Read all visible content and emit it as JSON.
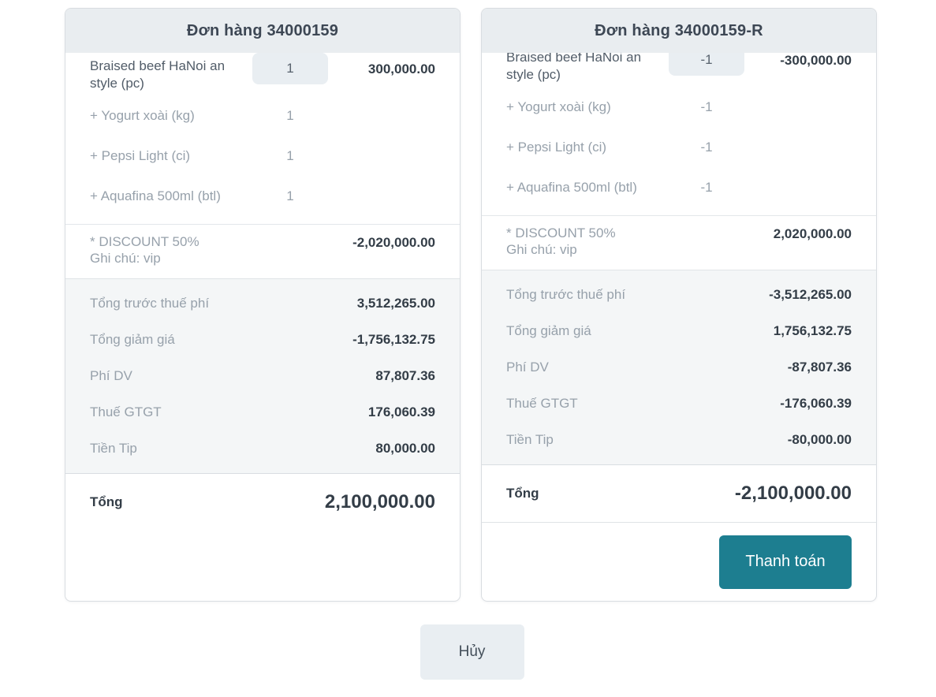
{
  "orders": [
    {
      "title": "Đơn hàng 34000159",
      "items": [
        {
          "name": "Braised beef HaNoi an style (pc)",
          "qty": "1",
          "price": "300,000.00"
        },
        {
          "name": "+ Yogurt xoài (kg)",
          "qty": "1",
          "price": ""
        },
        {
          "name": "+ Pepsi Light (ci)",
          "qty": "1",
          "price": ""
        },
        {
          "name": "+ Aquafina 500ml (btl)",
          "qty": "1",
          "price": ""
        }
      ],
      "discount": {
        "label": "* DISCOUNT 50%",
        "note": "Ghi chú: vip",
        "amount": "-2,020,000.00"
      },
      "summary": [
        {
          "label": "Tổng trước thuế phí",
          "value": "3,512,265.00"
        },
        {
          "label": "Tổng giảm giá",
          "value": "-1,756,132.75"
        },
        {
          "label": "Phí DV",
          "value": "87,807.36"
        },
        {
          "label": "Thuế GTGT",
          "value": "176,060.39"
        },
        {
          "label": "Tiền Tip",
          "value": "80,000.00"
        }
      ],
      "total": {
        "label": "Tổng",
        "value": "2,100,000.00"
      }
    },
    {
      "title": "Đơn hàng 34000159-R",
      "items": [
        {
          "name": "Braised beef HaNoi an style (pc)",
          "qty": "-1",
          "price": "-300,000.00"
        },
        {
          "name": "+ Yogurt xoài (kg)",
          "qty": "-1",
          "price": ""
        },
        {
          "name": "+ Pepsi Light (ci)",
          "qty": "-1",
          "price": ""
        },
        {
          "name": "+ Aquafina 500ml (btl)",
          "qty": "-1",
          "price": ""
        }
      ],
      "discount": {
        "label": "* DISCOUNT 50%",
        "note": "Ghi chú: vip",
        "amount": "2,020,000.00"
      },
      "summary": [
        {
          "label": "Tổng trước thuế phí",
          "value": "-3,512,265.00"
        },
        {
          "label": "Tổng giảm giá",
          "value": "1,756,132.75"
        },
        {
          "label": "Phí DV",
          "value": "-87,807.36"
        },
        {
          "label": "Thuế GTGT",
          "value": "-176,060.39"
        },
        {
          "label": "Tiền Tip",
          "value": "-80,000.00"
        }
      ],
      "total": {
        "label": "Tổng",
        "value": "-2,100,000.00"
      },
      "pay_button_label": "Thanh toán"
    }
  ],
  "cancel_button_label": "Hủy",
  "colors": {
    "accent_teal": "#1d7e90",
    "header_bg": "#e9edf0",
    "summary_bg": "#f4f6f7",
    "cancel_bg": "#e9eef2",
    "dark_text": "#333d47",
    "muted_text": "#97a1ab"
  }
}
